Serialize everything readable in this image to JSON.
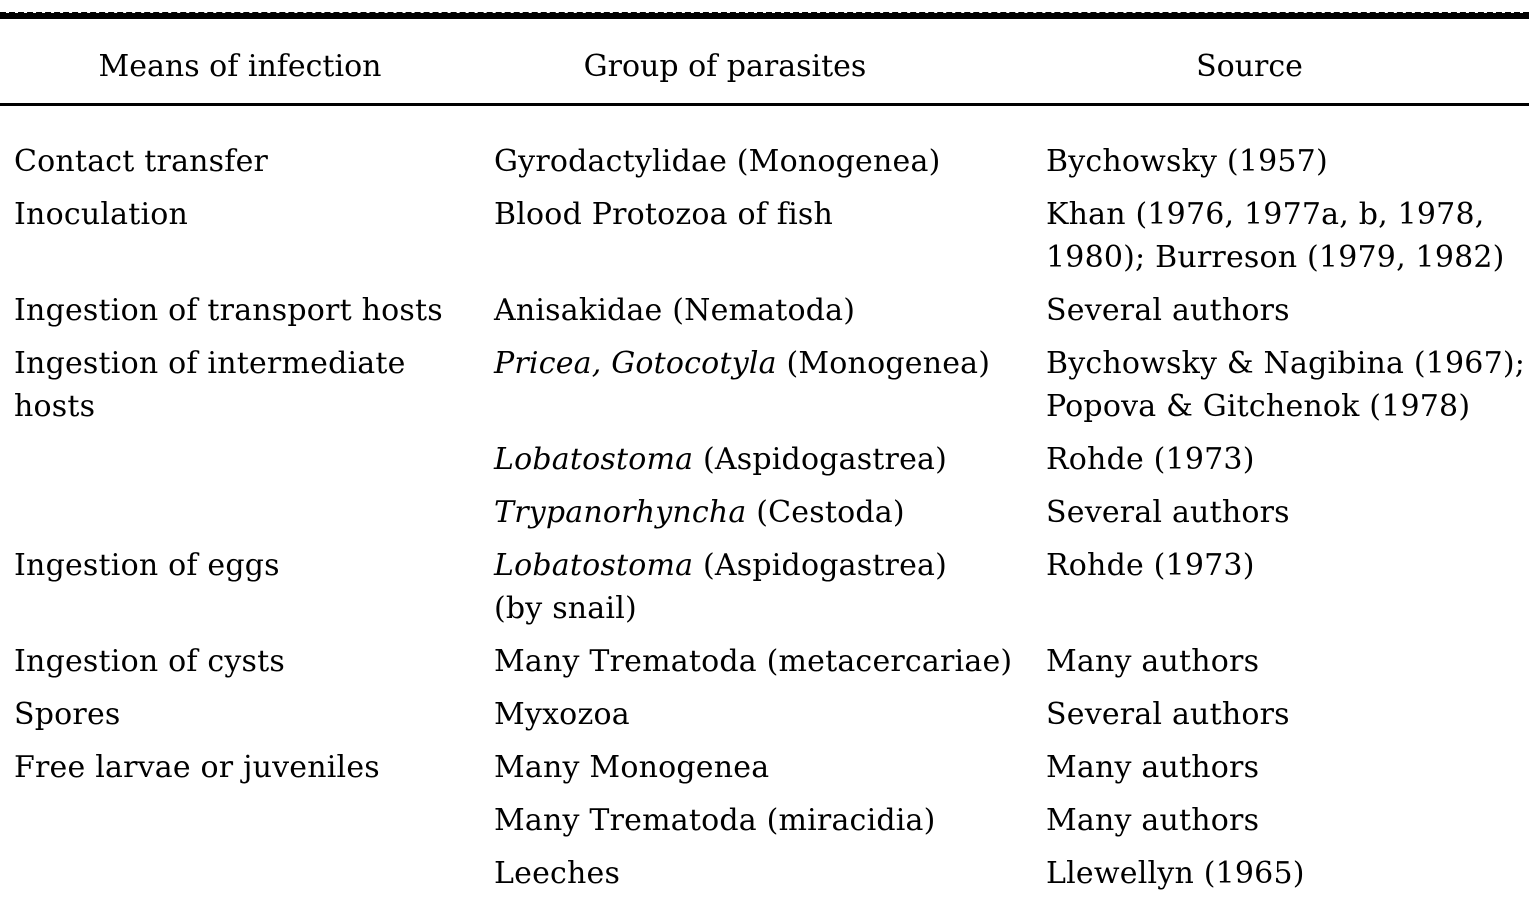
{
  "page": {
    "background_color": "#ffffff",
    "text_color": "#000000",
    "rule_color": "#000000"
  },
  "table": {
    "columns": [
      "Means of infection",
      "Group of parasites",
      "Source"
    ],
    "rows": [
      {
        "means": [
          {
            "t": "Contact transfer"
          }
        ],
        "group": [
          {
            "t": "Gyrodactylidae (Monogenea)"
          }
        ],
        "source": [
          {
            "t": "Bychowsky (1957)"
          }
        ]
      },
      {
        "means": [
          {
            "t": "Inoculation"
          }
        ],
        "group": [
          {
            "t": "Blood Protozoa of fish"
          }
        ],
        "source": [
          {
            "t": "Khan (1976, 1977a, b, 1978,\n1980); Burreson (1979, 1982)"
          }
        ]
      },
      {
        "means": [
          {
            "t": "Ingestion of transport hosts"
          }
        ],
        "group": [
          {
            "t": "Anisakidae (Nematoda)"
          }
        ],
        "source": [
          {
            "t": "Several authors"
          }
        ]
      },
      {
        "means": [
          {
            "t": "Ingestion of intermediate\nhosts"
          }
        ],
        "group": [
          {
            "t": "Pricea, Gotocotyla",
            "i": true
          },
          {
            "t": " (Monogenea)"
          }
        ],
        "source": [
          {
            "t": "Bychowsky & Nagibina (1967);\nPopova & Gitchenok (1978)"
          }
        ]
      },
      {
        "means": [],
        "group": [
          {
            "t": "Lobatostoma",
            "i": true
          },
          {
            "t": " (Aspidogastrea)"
          }
        ],
        "source": [
          {
            "t": "Rohde (1973)"
          }
        ]
      },
      {
        "means": [],
        "group": [
          {
            "t": "Trypanorhyncha",
            "i": true
          },
          {
            "t": " (Cestoda)"
          }
        ],
        "source": [
          {
            "t": "Several authors"
          }
        ]
      },
      {
        "means": [
          {
            "t": "Ingestion of eggs"
          }
        ],
        "group": [
          {
            "t": "Lobatostoma",
            "i": true
          },
          {
            "t": " (Aspidogastrea)\n(by snail)"
          }
        ],
        "source": [
          {
            "t": "Rohde (1973)"
          }
        ]
      },
      {
        "means": [
          {
            "t": "Ingestion of cysts"
          }
        ],
        "group": [
          {
            "t": "Many Trematoda (metacercariae)"
          }
        ],
        "source": [
          {
            "t": "Many authors"
          }
        ]
      },
      {
        "means": [
          {
            "t": "Spores"
          }
        ],
        "group": [
          {
            "t": "Myxozoa"
          }
        ],
        "source": [
          {
            "t": "Several authors"
          }
        ]
      },
      {
        "means": [
          {
            "t": "Free larvae or juveniles"
          }
        ],
        "group": [
          {
            "t": "Many Monogenea"
          }
        ],
        "source": [
          {
            "t": "Many authors"
          }
        ]
      },
      {
        "means": [],
        "group": [
          {
            "t": "Many Trematoda (miracidia)"
          }
        ],
        "source": [
          {
            "t": "Many authors"
          }
        ]
      },
      {
        "means": [],
        "group": [
          {
            "t": "Leeches"
          }
        ],
        "source": [
          {
            "t": "Llewellyn (1965)"
          }
        ]
      }
    ]
  }
}
